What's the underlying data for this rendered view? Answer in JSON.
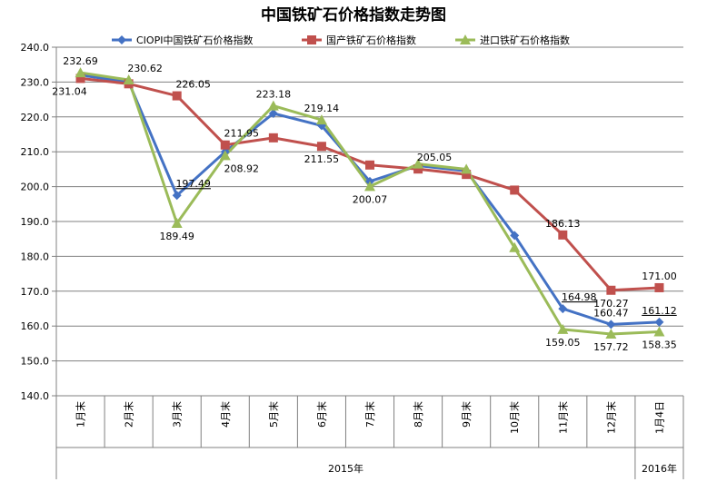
{
  "chart_data": {
    "type": "line",
    "title": "中国铁矿石价格指数走势图",
    "categories": [
      "1月末",
      "2月末",
      "3月末",
      "4月末",
      "5月末",
      "6月末",
      "7月末",
      "8月末",
      "9月末",
      "10月末",
      "11月末",
      "12月末",
      "1月4日"
    ],
    "year_groups": [
      {
        "label": "2015年",
        "start": 0,
        "end": 11
      },
      {
        "label": "2016年",
        "start": 12,
        "end": 12
      }
    ],
    "ylim": [
      140,
      240
    ],
    "yticks": [
      "140.0",
      "150.0",
      "160.0",
      "170.0",
      "180.0",
      "190.0",
      "200.0",
      "210.0",
      "220.0",
      "230.0",
      "240.0"
    ],
    "grid": true,
    "legend_position": "top",
    "series": [
      {
        "name": "CIOPI中国铁矿石价格指数",
        "color": "#4472C4",
        "marker": "diamond",
        "values": [
          232.0,
          230.0,
          197.49,
          210.0,
          221.0,
          217.5,
          201.5,
          206.0,
          204.5,
          186.0,
          164.98,
          160.47,
          161.12
        ]
      },
      {
        "name": "国产铁矿石价格指数",
        "color": "#C0504D",
        "marker": "square",
        "values": [
          231.04,
          229.5,
          226.05,
          211.95,
          214.0,
          211.55,
          206.2,
          205.05,
          203.5,
          199.0,
          186.13,
          170.27,
          171.0
        ]
      },
      {
        "name": "进口铁矿石价格指数",
        "color": "#9BBB59",
        "marker": "triangle",
        "values": [
          232.69,
          230.62,
          189.49,
          208.92,
          223.18,
          219.14,
          200.07,
          206.5,
          205.0,
          182.5,
          159.05,
          157.72,
          158.35
        ]
      }
    ],
    "data_labels": [
      {
        "text": "232.69",
        "series": 2,
        "index": 0,
        "pos": "above"
      },
      {
        "text": "231.04",
        "series": 1,
        "index": 0,
        "pos": "below-left"
      },
      {
        "text": "230.62",
        "series": 2,
        "index": 1,
        "pos": "above-right"
      },
      {
        "text": "226.05",
        "series": 1,
        "index": 2,
        "pos": "above-right"
      },
      {
        "text": "197.49",
        "series": 0,
        "index": 2,
        "pos": "above-right",
        "underline": true
      },
      {
        "text": "189.49",
        "series": 2,
        "index": 2,
        "pos": "below"
      },
      {
        "text": "211.95",
        "series": 1,
        "index": 3,
        "pos": "above-right"
      },
      {
        "text": "208.92",
        "series": 2,
        "index": 3,
        "pos": "below-right"
      },
      {
        "text": "223.18",
        "series": 2,
        "index": 4,
        "pos": "above"
      },
      {
        "text": "219.14",
        "series": 2,
        "index": 5,
        "pos": "above"
      },
      {
        "text": "211.55",
        "series": 1,
        "index": 5,
        "pos": "below"
      },
      {
        "text": "200.07",
        "series": 2,
        "index": 6,
        "pos": "below"
      },
      {
        "text": "205.05",
        "series": 1,
        "index": 7,
        "pos": "above-right"
      },
      {
        "text": "186.13",
        "series": 1,
        "index": 10,
        "pos": "above"
      },
      {
        "text": "164.98",
        "series": 0,
        "index": 10,
        "pos": "above-right",
        "underline": true
      },
      {
        "text": "159.05",
        "series": 2,
        "index": 10,
        "pos": "below"
      },
      {
        "text": "170.27",
        "series": 1,
        "index": 11,
        "pos": "below"
      },
      {
        "text": "160.47",
        "series": 0,
        "index": 11,
        "pos": "above"
      },
      {
        "text": "157.72",
        "series": 2,
        "index": 11,
        "pos": "below"
      },
      {
        "text": "171.00",
        "series": 1,
        "index": 12,
        "pos": "above"
      },
      {
        "text": "161.12",
        "series": 0,
        "index": 12,
        "pos": "above",
        "underline": true
      },
      {
        "text": "158.35",
        "series": 2,
        "index": 12,
        "pos": "below"
      }
    ]
  }
}
